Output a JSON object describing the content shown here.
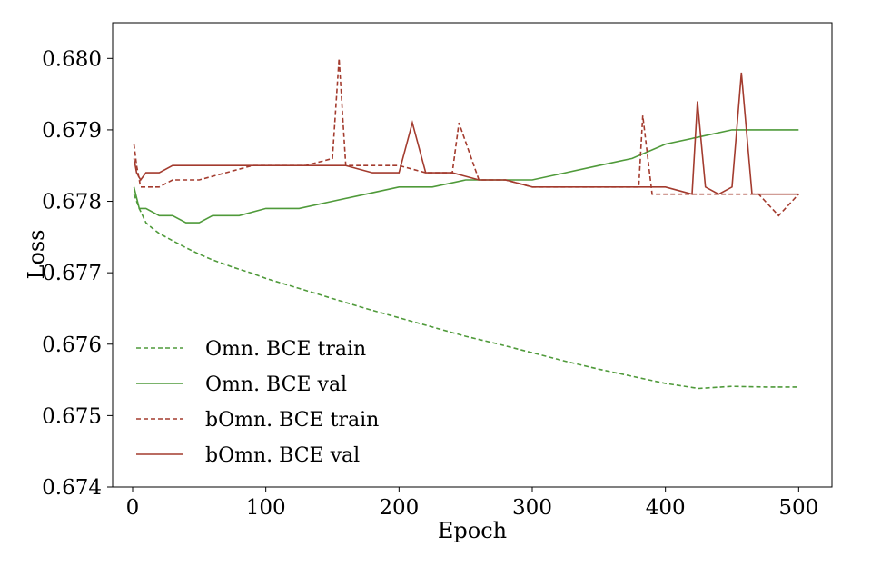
{
  "chart_data": {
    "type": "line",
    "xlabel": "Epoch",
    "ylabel": "Loss",
    "xlim": [
      -15,
      525
    ],
    "ylim": [
      0.674,
      0.6805
    ],
    "x_ticks": [
      0,
      100,
      200,
      300,
      400,
      500
    ],
    "y_ticks": [
      0.674,
      0.675,
      0.676,
      0.677,
      0.678,
      0.679,
      0.68
    ],
    "x_tick_labels": [
      "0",
      "100",
      "200",
      "300",
      "400",
      "500"
    ],
    "y_tick_labels": [
      "0.674",
      "0.675",
      "0.676",
      "0.677",
      "0.678",
      "0.679",
      "0.680"
    ],
    "grid": false,
    "legend_position": "lower-left",
    "series": [
      {
        "name": "Omn. BCE train",
        "color": "#4f9a3a",
        "style": "dashed",
        "x": [
          1,
          5,
          10,
          15,
          20,
          30,
          40,
          50,
          60,
          75,
          90,
          100,
          125,
          150,
          175,
          200,
          225,
          250,
          275,
          300,
          325,
          350,
          375,
          400,
          425,
          450,
          475,
          500
        ],
        "y": [
          0.6781,
          0.6779,
          0.6777,
          0.67762,
          0.67755,
          0.67745,
          0.67735,
          0.67726,
          0.67718,
          0.67708,
          0.67699,
          0.67692,
          0.67678,
          0.67664,
          0.6765,
          0.67637,
          0.67624,
          0.67611,
          0.676,
          0.67588,
          0.67576,
          0.67565,
          0.67555,
          0.67545,
          0.67538,
          0.67541,
          0.6754,
          0.6754
        ]
      },
      {
        "name": "Omn. BCE val",
        "color": "#4f9a3a",
        "style": "solid",
        "x": [
          1,
          5,
          10,
          20,
          30,
          40,
          50,
          60,
          80,
          100,
          125,
          150,
          175,
          200,
          225,
          250,
          275,
          300,
          325,
          350,
          375,
          400,
          425,
          450,
          475,
          500
        ],
        "y": [
          0.6782,
          0.6779,
          0.6779,
          0.6778,
          0.6778,
          0.6777,
          0.6777,
          0.6778,
          0.6778,
          0.6779,
          0.6779,
          0.678,
          0.6781,
          0.6782,
          0.6782,
          0.6783,
          0.6783,
          0.6783,
          0.6784,
          0.6785,
          0.6786,
          0.6788,
          0.6789,
          0.679,
          0.679,
          0.679
        ]
      },
      {
        "name": "bOmn. BCE train",
        "color": "#a33b2e",
        "style": "dashed",
        "x": [
          1,
          3,
          6,
          10,
          20,
          30,
          50,
          70,
          90,
          110,
          130,
          150,
          155,
          160,
          180,
          200,
          220,
          240,
          245,
          260,
          280,
          300,
          320,
          340,
          360,
          380,
          383,
          390,
          410,
          430,
          450,
          470,
          485,
          500
        ],
        "y": [
          0.6788,
          0.6785,
          0.6782,
          0.6782,
          0.6782,
          0.6783,
          0.6783,
          0.6784,
          0.6785,
          0.6785,
          0.6785,
          0.6786,
          0.68,
          0.6785,
          0.6785,
          0.6785,
          0.6784,
          0.6784,
          0.6791,
          0.6783,
          0.6783,
          0.6782,
          0.6782,
          0.6782,
          0.6782,
          0.6782,
          0.6792,
          0.6781,
          0.6781,
          0.6781,
          0.6781,
          0.6781,
          0.6778,
          0.6781
        ]
      },
      {
        "name": "bOmn. BCE val",
        "color": "#a33b2e",
        "style": "solid",
        "x": [
          1,
          3,
          6,
          10,
          20,
          30,
          45,
          60,
          80,
          100,
          120,
          140,
          160,
          180,
          200,
          210,
          220,
          240,
          260,
          280,
          300,
          320,
          340,
          360,
          380,
          400,
          420,
          424,
          430,
          440,
          450,
          457,
          465,
          480,
          500
        ],
        "y": [
          0.6786,
          0.6784,
          0.6783,
          0.6784,
          0.6784,
          0.6785,
          0.6785,
          0.6785,
          0.6785,
          0.6785,
          0.6785,
          0.6785,
          0.6785,
          0.6784,
          0.6784,
          0.6791,
          0.6784,
          0.6784,
          0.6783,
          0.6783,
          0.6782,
          0.6782,
          0.6782,
          0.6782,
          0.6782,
          0.6782,
          0.6781,
          0.6794,
          0.6782,
          0.6781,
          0.6782,
          0.6798,
          0.6781,
          0.6781,
          0.6781
        ]
      }
    ]
  }
}
